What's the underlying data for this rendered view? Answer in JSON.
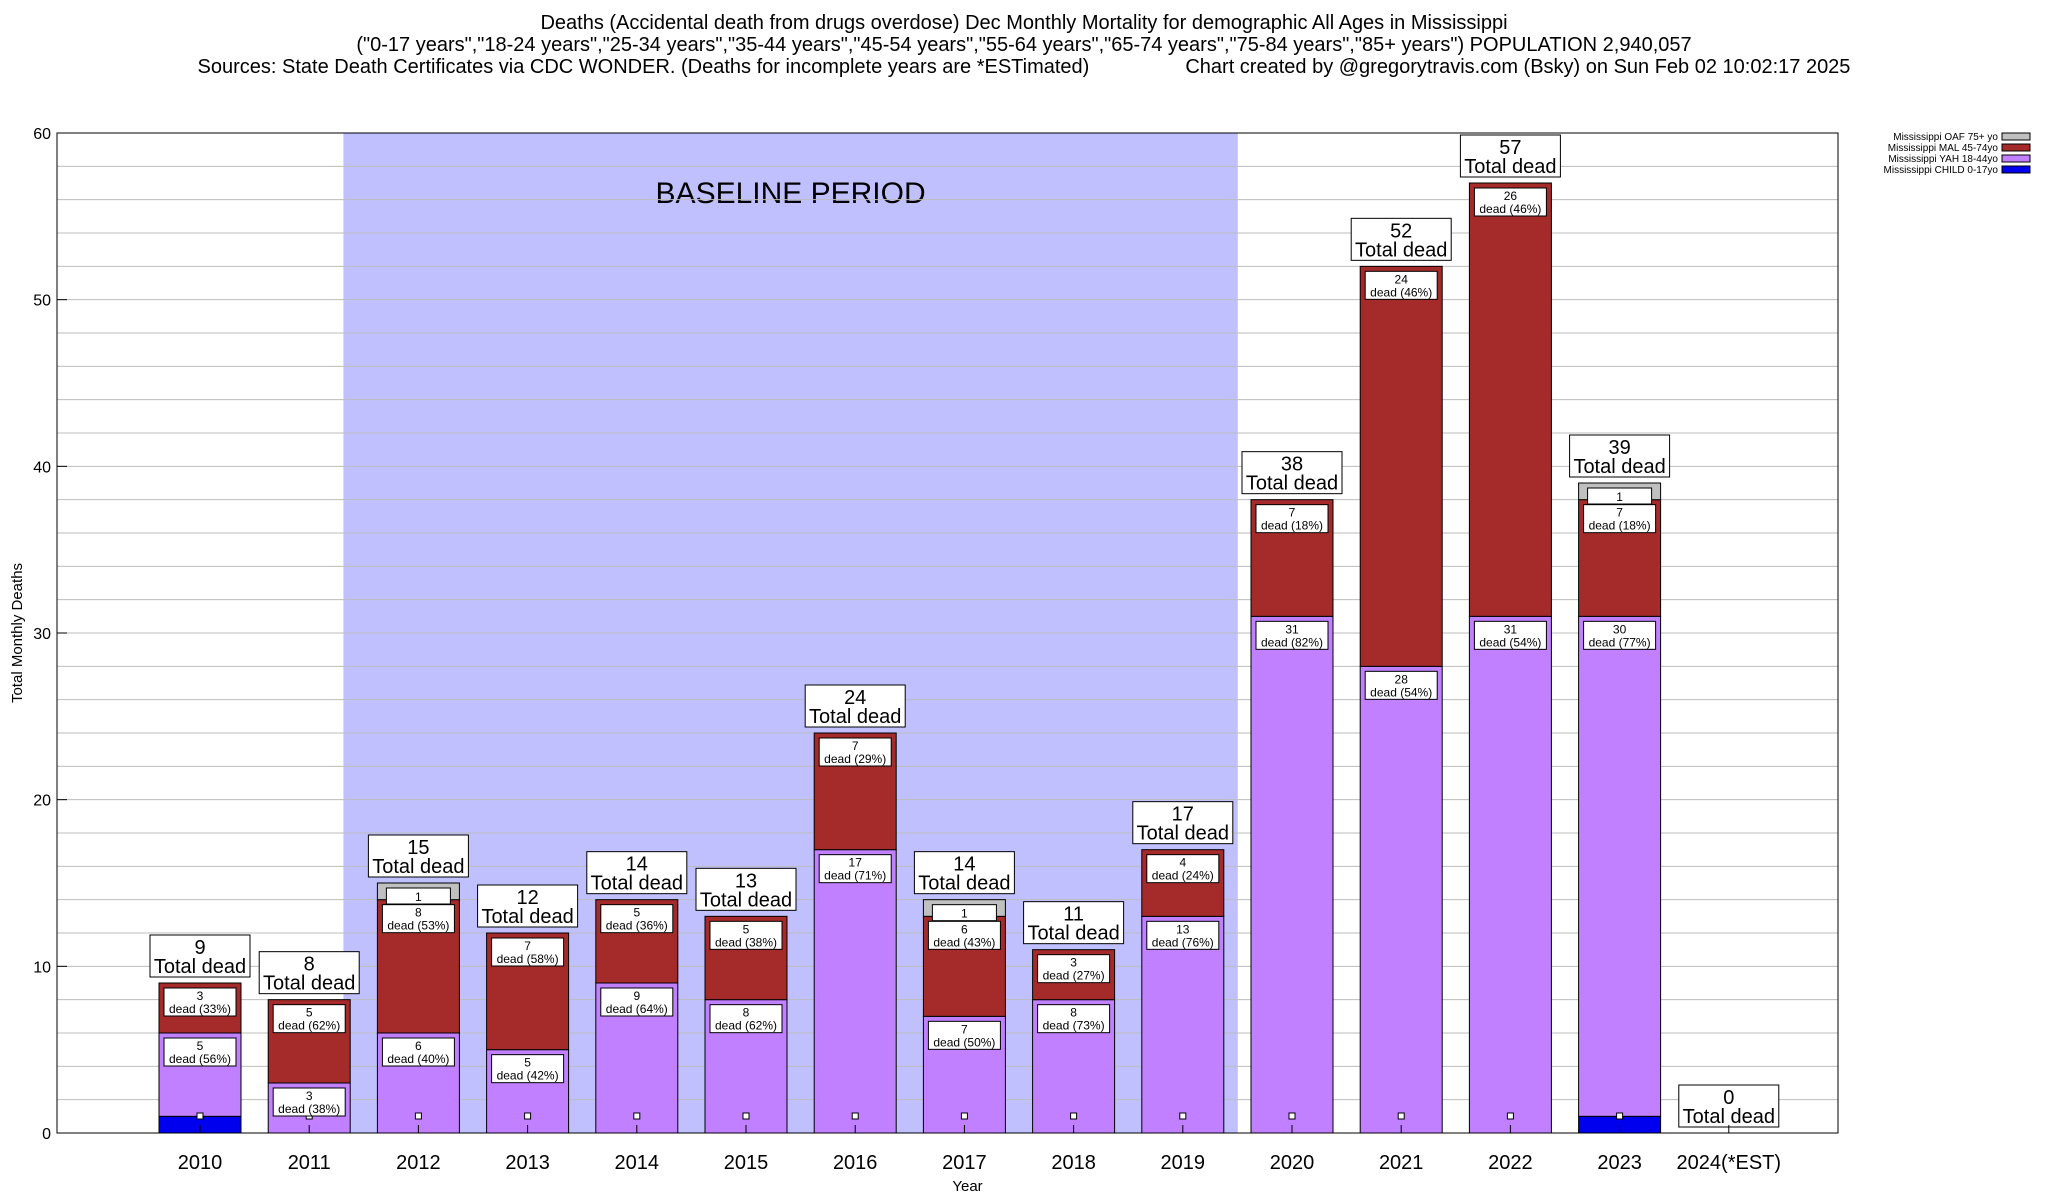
{
  "chart_data": {
    "type": "bar",
    "title": "Deaths (Accidental death from drugs overdose) Dec Monthly Mortality for demographic All Ages in Mississippi",
    "subtitle": "(\"0-17 years\",\"18-24 years\",\"25-34 years\",\"35-44 years\",\"45-54 years\",\"55-64 years\",\"65-74 years\",\"75-84 years\",\"85+ years\") POPULATION 2,940,057",
    "sources": "Sources: State Death Certificates via CDC WONDER. (Deaths for incomplete years are *ESTimated)",
    "credit": "Chart created by @gregorytravis.com (Bsky) on Sun Feb 02 10:02:17 2025",
    "xlabel": "Year",
    "ylabel": "Total Monthly Deaths",
    "ylim": [
      0,
      60
    ],
    "yticks": [
      0,
      10,
      20,
      30,
      40,
      50,
      60
    ],
    "grid": true,
    "stacked": true,
    "legend_position": "top-right",
    "baseline_label": "BASELINE PERIOD",
    "baseline_range": [
      "2012",
      "2019"
    ],
    "baseline_color": "#c0c0ff",
    "total_suffix": "Total dead",
    "categories": [
      "2010",
      "2011",
      "2012",
      "2013",
      "2014",
      "2015",
      "2016",
      "2017",
      "2018",
      "2019",
      "2020",
      "2021",
      "2022",
      "2023",
      "2024(*EST)"
    ],
    "totals": [
      9,
      8,
      15,
      12,
      14,
      13,
      24,
      14,
      11,
      17,
      38,
      52,
      57,
      39,
      0
    ],
    "series": [
      {
        "name": "Mississippi CHILD 0-17yo",
        "color": "#0000ee",
        "values": [
          1,
          0,
          0,
          0,
          0,
          0,
          0,
          0,
          0,
          0,
          0,
          0,
          0,
          1,
          0
        ],
        "labels": [
          "",
          "",
          "",
          "",
          "",
          "",
          "",
          "",
          "",
          "",
          "",
          "",
          "",
          "",
          ""
        ]
      },
      {
        "name": "Mississippi YAH 18-44yo",
        "color": "#c080ff",
        "values": [
          5,
          3,
          6,
          5,
          9,
          8,
          17,
          7,
          8,
          13,
          31,
          28,
          31,
          30,
          0
        ],
        "labels": [
          "dead (56%)",
          "dead (38%)",
          "dead (40%)",
          "dead (42%)",
          "dead (64%)",
          "dead (62%)",
          "dead (71%)",
          "dead (50%)",
          "dead (73%)",
          "dead (76%)",
          "dead (82%)",
          "dead (54%)",
          "dead (54%)",
          "dead (77%)",
          ""
        ]
      },
      {
        "name": "Mississippi MAL 45-74yo",
        "color": "#a52a2a",
        "values": [
          3,
          5,
          8,
          7,
          5,
          5,
          7,
          6,
          3,
          4,
          7,
          24,
          26,
          7,
          0
        ],
        "labels": [
          "dead (33%)",
          "dead (62%)",
          "dead (53%)",
          "dead (58%)",
          "dead (36%)",
          "dead (38%)",
          "dead (29%)",
          "dead (43%)",
          "dead (27%)",
          "dead (24%)",
          "dead (18%)",
          "dead (46%)",
          "dead (46%)",
          "dead (18%)",
          ""
        ]
      },
      {
        "name": "Mississippi OAF 75+ yo",
        "color": "#c0c0c0",
        "values": [
          0,
          0,
          1,
          0,
          0,
          0,
          0,
          1,
          0,
          0,
          0,
          0,
          0,
          1,
          0
        ],
        "labels": [
          "",
          "",
          "",
          "",
          "",
          "",
          "",
          "",
          "",
          "",
          "",
          "",
          "",
          "",
          ""
        ]
      }
    ]
  }
}
